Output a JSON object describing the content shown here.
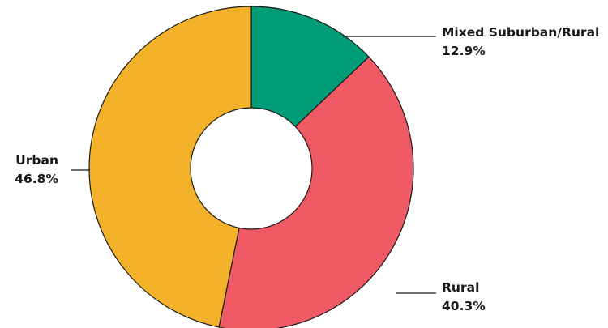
{
  "chart_data": {
    "type": "pie",
    "title": "",
    "categories": [
      "Mixed Suburban/Rural",
      "Rural",
      "Urban"
    ],
    "values": [
      12.9,
      40.3,
      46.8
    ],
    "value_labels": [
      "12.9%",
      "40.3%",
      "46.8%"
    ],
    "colors": [
      "#009B77",
      "#F05A64",
      "#F4B22B"
    ],
    "donut": true,
    "legend": "none"
  }
}
